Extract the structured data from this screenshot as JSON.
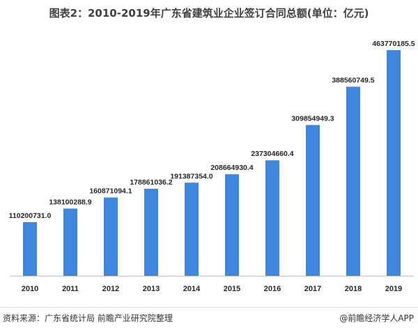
{
  "title": "图表2：2010-2019年广东省建筑业企业签订合同总额(单位：亿元)",
  "source": "资料来源：广东省统计局 前瞻产业研究院整理",
  "credit": "@前瞻经济学人APP",
  "colors": {
    "bar": "#3f86de",
    "axis": "#bfbfbf",
    "text": "#404040"
  },
  "chart_data": {
    "type": "bar",
    "title": "图表2：2010-2019年广东省建筑业企业签订合同总额(单位：亿元)",
    "categories": [
      "2010",
      "2011",
      "2012",
      "2013",
      "2014",
      "2015",
      "2016",
      "2017",
      "2018",
      "2019"
    ],
    "values": [
      110200731.0,
      138100288.9,
      160871094.1,
      178861036.2,
      191387354.0,
      208664930.4,
      237304660.4,
      309854949.3,
      388560749.5,
      463770185.5
    ],
    "labels": [
      "110200731.0",
      "138100288.9",
      "160871094.1",
      "178861036.2",
      "191387354.0",
      "208664930.4",
      "237304660.4",
      "309854949.3",
      "388560749.5",
      "463770185.5"
    ],
    "ylim": [
      0,
      500000000
    ],
    "grid": false,
    "legend": "none"
  }
}
